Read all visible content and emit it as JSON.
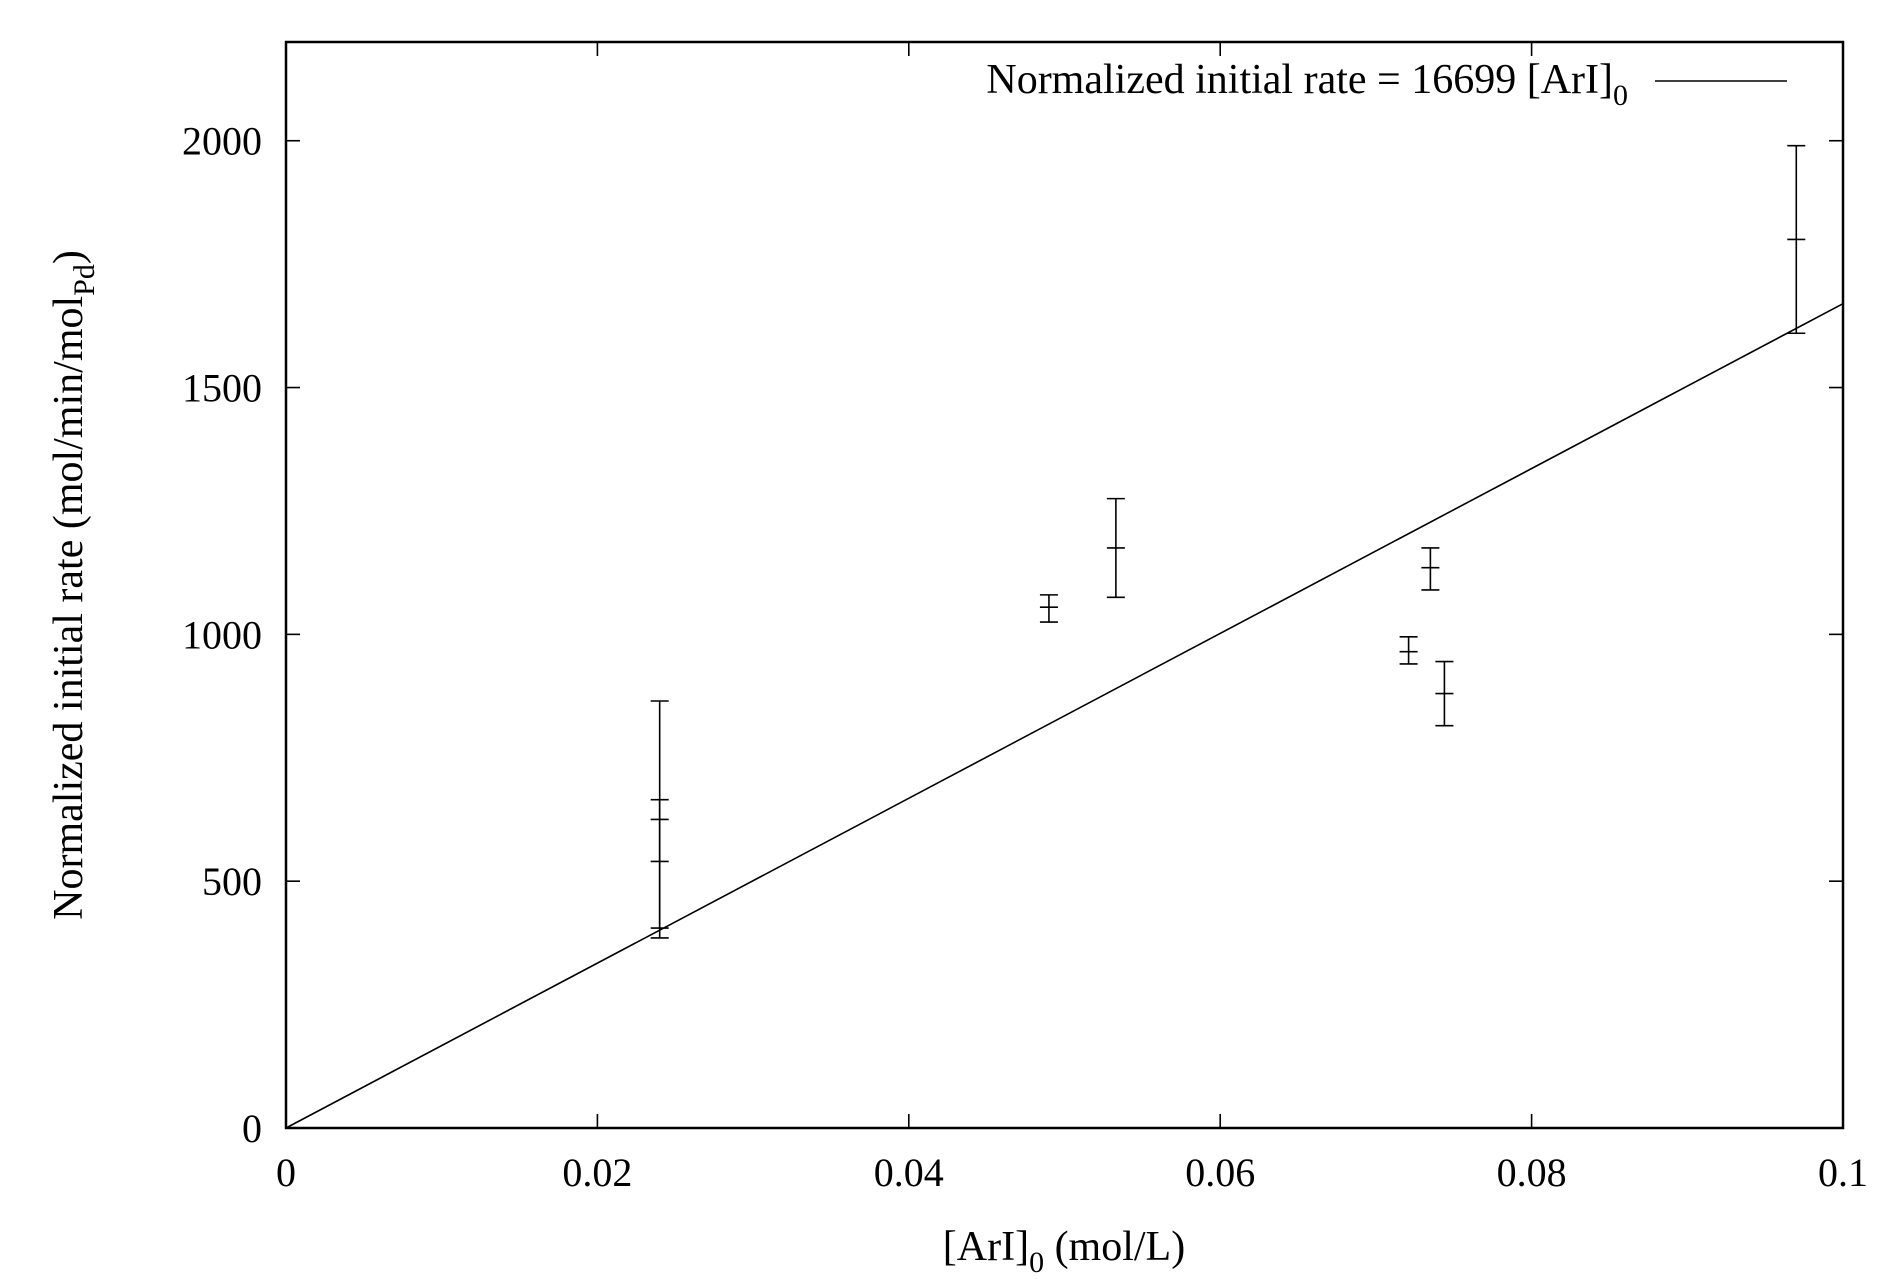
{
  "chart_data": {
    "type": "scatter",
    "title": "",
    "xlabel": {
      "main": "[ArI]",
      "sub": "0",
      "tail": " (mol/L)"
    },
    "ylabel": {
      "main": "Normalized initial rate (mol/min/mol",
      "sub": "Pd",
      "tail": ")"
    },
    "xlim": [
      0,
      0.1
    ],
    "ylim": [
      0,
      2200
    ],
    "xticks": [
      0,
      0.02,
      0.04,
      0.06,
      0.08,
      0.1
    ],
    "xtick_labels": [
      "0",
      "0.02",
      "0.04",
      "0.06",
      "0.08",
      "0.1"
    ],
    "yticks": [
      0,
      500,
      1000,
      1500,
      2000
    ],
    "ytick_labels": [
      "0",
      "500",
      "1000",
      "1500",
      "2000"
    ],
    "grid": false,
    "legend": {
      "position": "top-right",
      "main": "Normalized initial rate = 16699 [ArI]",
      "sub": "0"
    },
    "fit": {
      "slope": 16699,
      "x": [
        0,
        0.1
      ]
    },
    "points": [
      {
        "x": 0.024,
        "y": 540,
        "low": 405,
        "high": 665
      },
      {
        "x": 0.024,
        "y": 625,
        "low": 385,
        "high": 865
      },
      {
        "x": 0.049,
        "y": 1055,
        "low": 1025,
        "high": 1080
      },
      {
        "x": 0.0533,
        "y": 1175,
        "low": 1075,
        "high": 1275
      },
      {
        "x": 0.0721,
        "y": 965,
        "low": 940,
        "high": 995
      },
      {
        "x": 0.0735,
        "y": 1135,
        "low": 1090,
        "high": 1175
      },
      {
        "x": 0.0744,
        "y": 880,
        "low": 815,
        "high": 945
      },
      {
        "x": 0.097,
        "y": 1800,
        "low": 1610,
        "high": 1990
      }
    ]
  }
}
